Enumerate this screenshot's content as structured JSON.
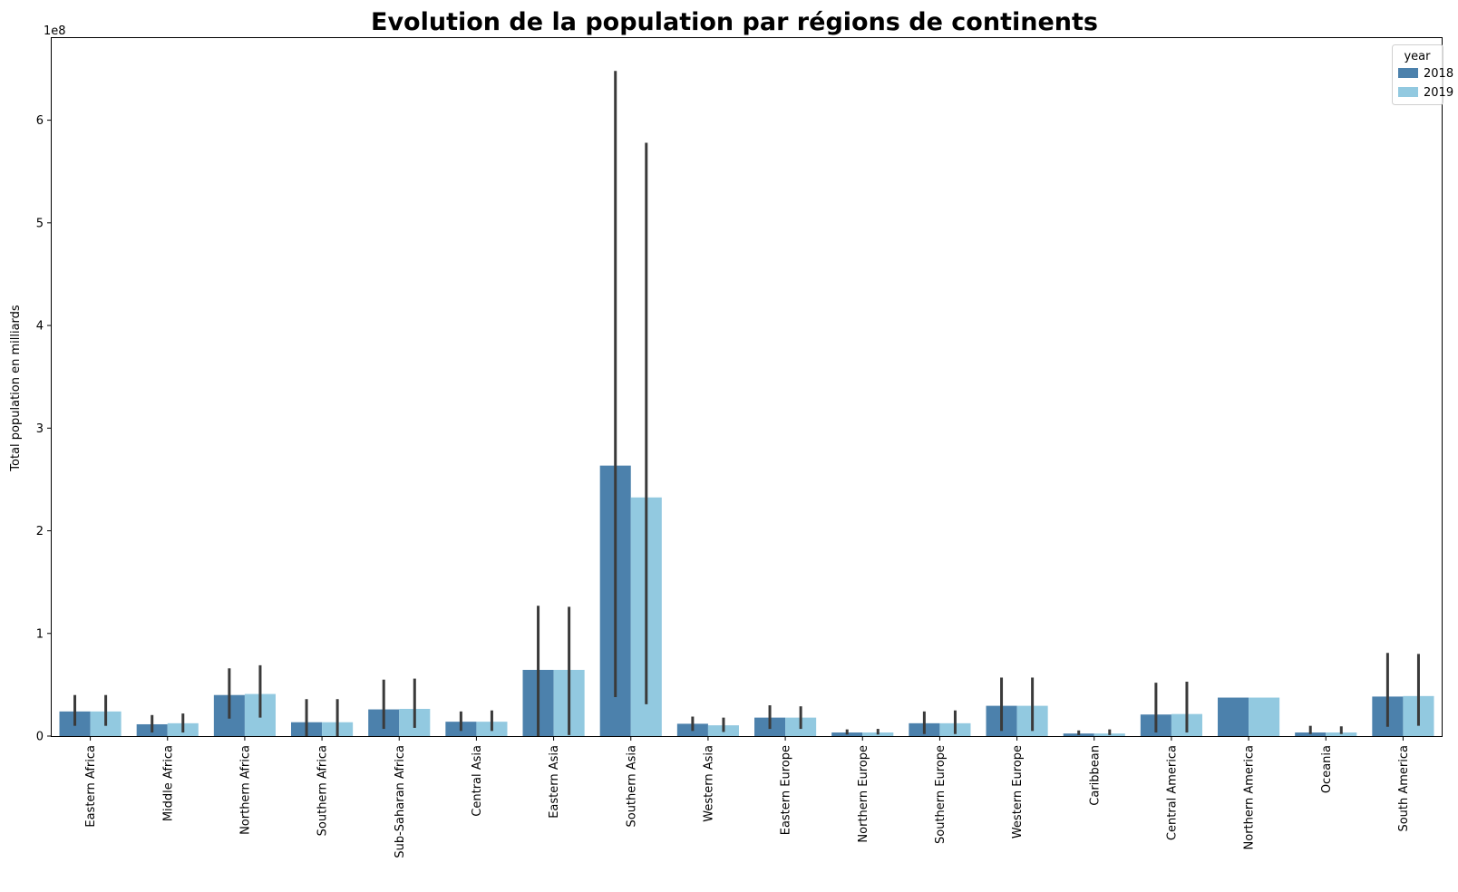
{
  "chart_data": {
    "type": "bar",
    "title": "Evolution de la population par régions de continents",
    "xlabel": "",
    "ylabel": "Total population en milliards",
    "y_offset_text": "1e8",
    "yticks": [
      0,
      1,
      2,
      3,
      4,
      5,
      6
    ],
    "ylim": [
      0,
      6.8
    ],
    "y_unit_multiplier": 100000000,
    "categories": [
      "Eastern Africa",
      "Middle Africa",
      "Northern Africa",
      "Southern Africa",
      "Sub-Saharan Africa",
      "Central Asia",
      "Eastern Asia",
      "Southern Asia",
      "Western Asia",
      "Eastern Europe",
      "Northern Europe",
      "Southern Europe",
      "Western Europe",
      "Caribbean",
      "Central America",
      "Northern America",
      "Oceania",
      "South America"
    ],
    "legend": {
      "title": "year",
      "position": "top-right"
    },
    "error_bar_color": "#3a3a3a",
    "grid": false,
    "series": [
      {
        "name": "2018",
        "color": "#4c81ac",
        "values": [
          0.24,
          0.115,
          0.4,
          0.135,
          0.26,
          0.14,
          0.645,
          2.635,
          0.12,
          0.18,
          0.035,
          0.125,
          0.295,
          0.025,
          0.21,
          0.375,
          0.035,
          0.385
        ],
        "error_low": [
          0.1,
          0.035,
          0.17,
          0.0,
          0.07,
          0.05,
          0.0,
          0.38,
          0.05,
          0.07,
          0.015,
          0.02,
          0.05,
          0.01,
          0.035,
          0.375,
          0.02,
          0.09
        ],
        "error_high": [
          0.4,
          0.205,
          0.66,
          0.36,
          0.55,
          0.24,
          1.27,
          6.48,
          0.19,
          0.3,
          0.065,
          0.24,
          0.57,
          0.055,
          0.52,
          0.375,
          0.1,
          0.81
        ]
      },
      {
        "name": "2019",
        "color": "#92c9e0",
        "values": [
          0.24,
          0.125,
          0.41,
          0.135,
          0.265,
          0.14,
          0.645,
          2.325,
          0.105,
          0.18,
          0.035,
          0.125,
          0.295,
          0.025,
          0.215,
          0.375,
          0.035,
          0.39
        ],
        "error_low": [
          0.1,
          0.035,
          0.18,
          0.0,
          0.08,
          0.05,
          0.01,
          0.31,
          0.04,
          0.07,
          0.015,
          0.02,
          0.05,
          0.01,
          0.035,
          0.375,
          0.02,
          0.1
        ],
        "error_high": [
          0.4,
          0.22,
          0.69,
          0.36,
          0.56,
          0.25,
          1.26,
          5.78,
          0.18,
          0.29,
          0.07,
          0.25,
          0.57,
          0.065,
          0.53,
          0.375,
          0.095,
          0.8
        ]
      }
    ]
  }
}
